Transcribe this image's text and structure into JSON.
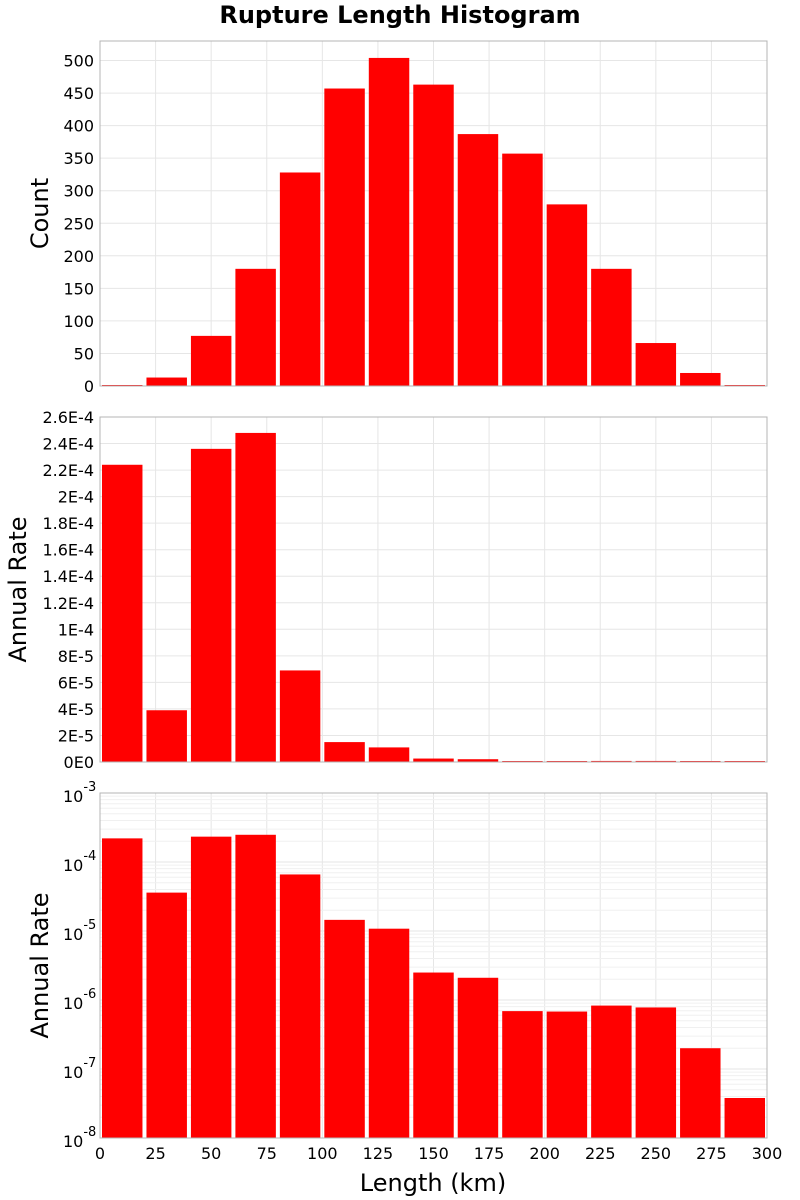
{
  "chart_data": {
    "type": "bar",
    "title": "Rupture Length Histogram",
    "xlabel": "Length (km)",
    "xlim": [
      0,
      300
    ],
    "x_ticks": [
      "0",
      "25",
      "50",
      "75",
      "100",
      "125",
      "150",
      "175",
      "200",
      "225",
      "250",
      "275",
      "300"
    ],
    "bin_width": 20,
    "bar_color": "#ff0000",
    "grid": true,
    "panels": [
      {
        "ylabel": "Count",
        "scale": "linear",
        "ylim": [
          0,
          530
        ],
        "y_ticks": [
          "0",
          "50",
          "100",
          "150",
          "200",
          "250",
          "300",
          "350",
          "400",
          "450",
          "500"
        ],
        "x": [
          10,
          30,
          50,
          70,
          90,
          110,
          130,
          150,
          170,
          190,
          210,
          230,
          250,
          270,
          290
        ],
        "values": [
          1,
          13,
          77,
          180,
          328,
          457,
          504,
          463,
          387,
          357,
          279,
          180,
          66,
          20,
          1
        ]
      },
      {
        "ylabel": "Annual Rate",
        "scale": "linear",
        "ylim": [
          0,
          0.00026
        ],
        "y_ticks": [
          "0E0",
          "2E-5",
          "4E-5",
          "6E-5",
          "8E-5",
          "1E-4",
          "1.2E-4",
          "1.4E-4",
          "1.6E-4",
          "1.8E-4",
          "2E-4",
          "2.2E-4",
          "2.4E-4",
          "2.6E-4"
        ],
        "x": [
          10,
          30,
          50,
          70,
          90,
          110,
          130,
          150,
          170,
          190,
          210,
          230,
          250,
          270,
          290
        ],
        "values": [
          0.000224,
          3.9e-05,
          0.000236,
          0.000248,
          6.9e-05,
          1.5e-05,
          1.1e-05,
          2.6e-06,
          2.1e-06,
          7e-07,
          7e-07,
          8e-07,
          8e-07,
          2e-07,
          4e-08
        ]
      },
      {
        "ylabel": "Annual Rate",
        "scale": "log",
        "ylim": [
          1e-08,
          0.001
        ],
        "y_ticks": [
          {
            "base": "10",
            "exp": "-8"
          },
          {
            "base": "10",
            "exp": "-7"
          },
          {
            "base": "10",
            "exp": "-6"
          },
          {
            "base": "10",
            "exp": "-5"
          },
          {
            "base": "10",
            "exp": "-4"
          },
          {
            "base": "10",
            "exp": "-3"
          }
        ],
        "x": [
          10,
          30,
          50,
          70,
          90,
          110,
          130,
          150,
          170,
          190,
          210,
          230,
          250,
          270,
          290
        ],
        "values": [
          0.00022,
          3.6e-05,
          0.000233,
          0.000248,
          6.6e-05,
          1.45e-05,
          1.08e-05,
          2.5e-06,
          2.1e-06,
          6.9e-07,
          6.8e-07,
          8.3e-07,
          7.8e-07,
          2e-07,
          3.8e-08
        ]
      }
    ]
  }
}
